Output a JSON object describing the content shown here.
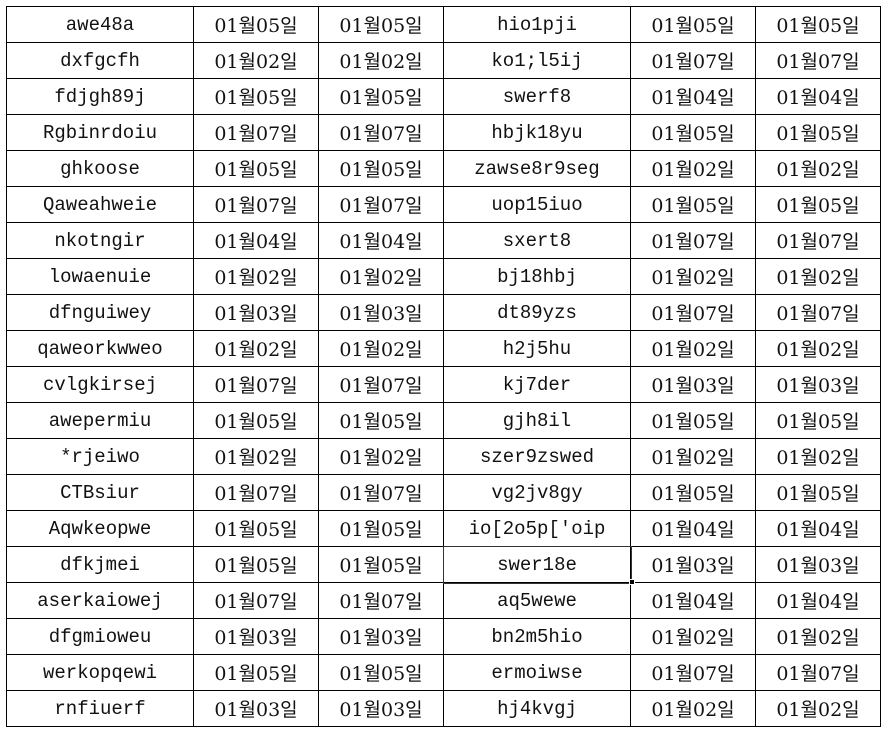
{
  "sheet": {
    "selected_cell": {
      "row": 15,
      "col": 3
    },
    "rows": [
      [
        "awe48a",
        "01월05일",
        "01월05일",
        "hio1pji",
        "01월05일",
        "01월05일"
      ],
      [
        "dxfgcfh",
        "01월02일",
        "01월02일",
        "ko1;l5ij",
        "01월07일",
        "01월07일"
      ],
      [
        "fdjgh89j",
        "01월05일",
        "01월05일",
        "swerf8",
        "01월04일",
        "01월04일"
      ],
      [
        "Rgbinrdoiu",
        "01월07일",
        "01월07일",
        "hbjk18yu",
        "01월05일",
        "01월05일"
      ],
      [
        "ghkoose",
        "01월05일",
        "01월05일",
        "zawse8r9seg",
        "01월02일",
        "01월02일"
      ],
      [
        "Qaweahweie",
        "01월07일",
        "01월07일",
        "uop15iuo",
        "01월05일",
        "01월05일"
      ],
      [
        "nkotngir",
        "01월04일",
        "01월04일",
        "sxert8",
        "01월07일",
        "01월07일"
      ],
      [
        "lowaenuie",
        "01월02일",
        "01월02일",
        "bj18hbj",
        "01월02일",
        "01월02일"
      ],
      [
        "dfnguiwey",
        "01월03일",
        "01월03일",
        "dt89yzs",
        "01월07일",
        "01월07일"
      ],
      [
        "qaweorkwweo",
        "01월02일",
        "01월02일",
        "h2j5hu",
        "01월02일",
        "01월02일"
      ],
      [
        "cvlgkirsej",
        "01월07일",
        "01월07일",
        "kj7der",
        "01월03일",
        "01월03일"
      ],
      [
        "awepermiu",
        "01월05일",
        "01월05일",
        "gjh8il",
        "01월05일",
        "01월05일"
      ],
      [
        "*rjeiwo",
        "01월02일",
        "01월02일",
        "szer9zswed",
        "01월02일",
        "01월02일"
      ],
      [
        "CTBsiur",
        "01월07일",
        "01월07일",
        "vg2jv8gy",
        "01월05일",
        "01월05일"
      ],
      [
        "Aqwkeopwe",
        "01월05일",
        "01월05일",
        "io[2o5p['oip",
        "01월04일",
        "01월04일"
      ],
      [
        "dfkjmei",
        "01월05일",
        "01월05일",
        "swer18e",
        "01월03일",
        "01월03일"
      ],
      [
        "aserkaiowej",
        "01월07일",
        "01월07일",
        "aq5wewe",
        "01월04일",
        "01월04일"
      ],
      [
        "dfgmioweu",
        "01월03일",
        "01월03일",
        "bn2m5hio",
        "01월02일",
        "01월02일"
      ],
      [
        "werkopqewi",
        "01월05일",
        "01월05일",
        "ermoiwse",
        "01월07일",
        "01월07일"
      ],
      [
        "rnfiuerf",
        "01월03일",
        "01월03일",
        "hj4kvgj",
        "01월02일",
        "01월02일"
      ]
    ]
  }
}
